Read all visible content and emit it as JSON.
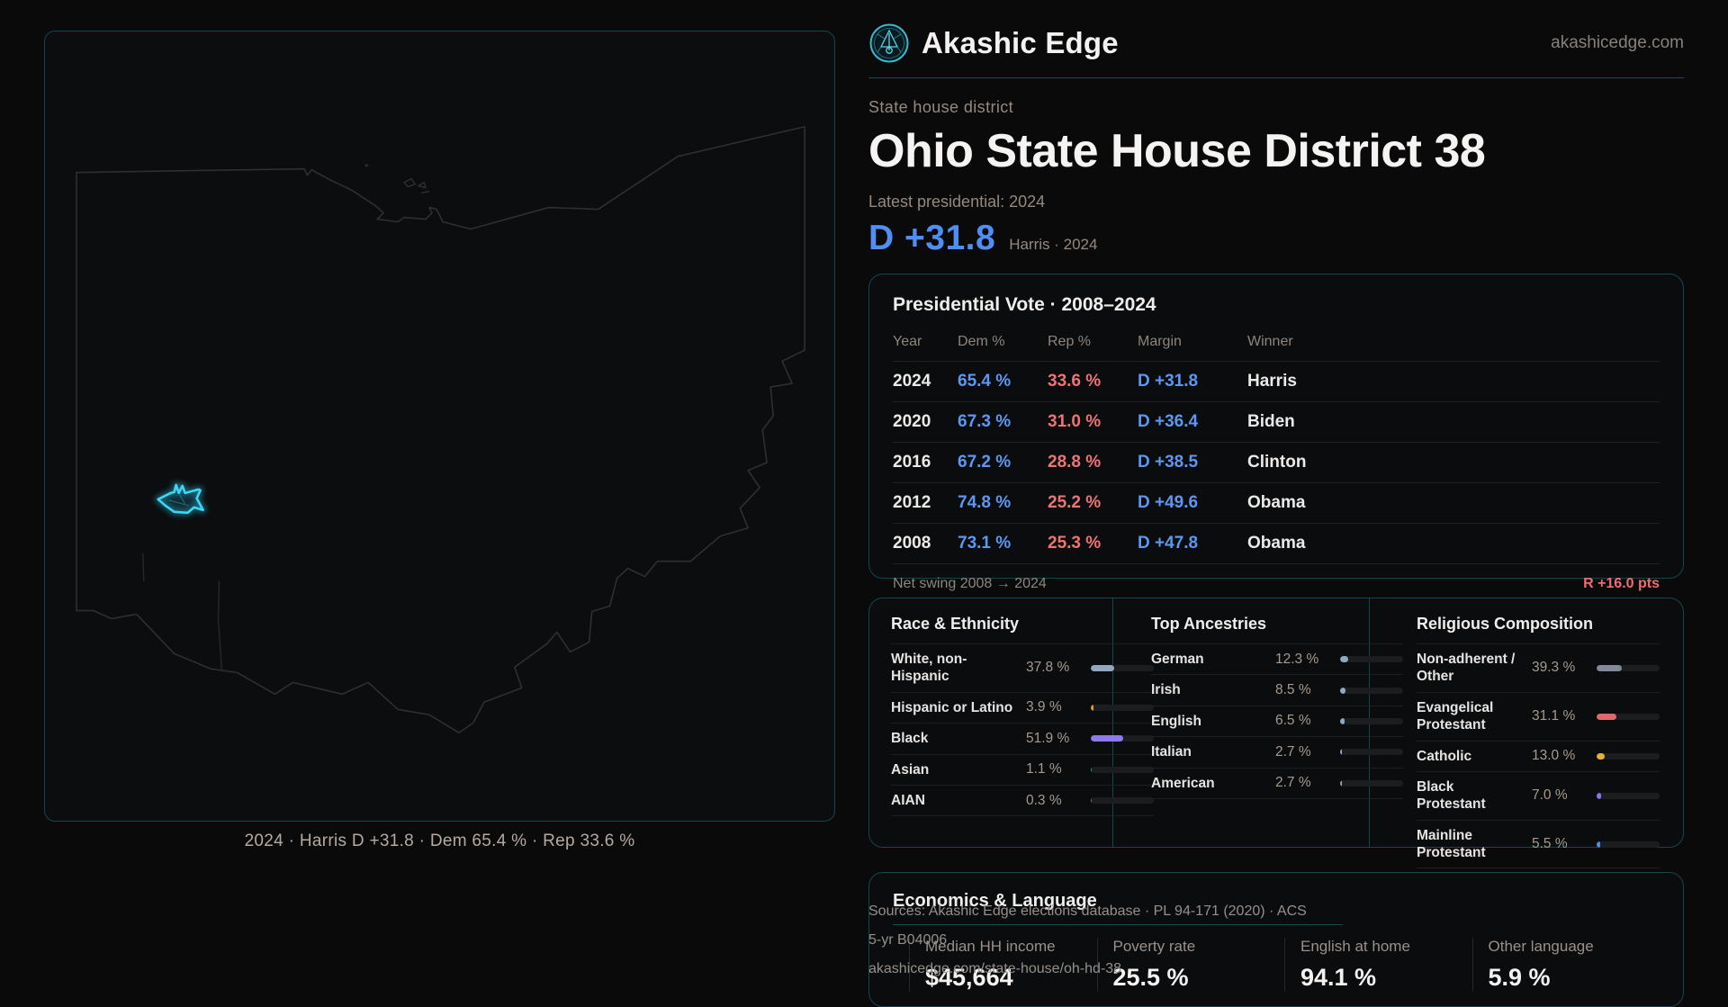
{
  "brand": {
    "name": "Akashic Edge",
    "domain": "akashicedge.com",
    "accent_teal": "#2fc3d8"
  },
  "page": {
    "kicker": "State house district",
    "title": "Ohio State House District 38",
    "latest_label": "Latest presidential: 2024",
    "margin_value": "D +31.8",
    "margin_context": "Harris · 2024"
  },
  "map": {
    "caption": "2024 · Harris D +31.8 · Dem 65.4 % · Rep 33.6 %",
    "district_color": "#3fd6f6",
    "outline_color": "#2e2f31"
  },
  "presidential": {
    "title": "Presidential Vote · 2008–2024",
    "columns": {
      "year": "Year",
      "dem": "Dem %",
      "rep": "Rep %",
      "margin": "Margin",
      "winner": "Winner"
    },
    "rows": [
      {
        "year": "2024",
        "dem": "65.4 %",
        "rep": "33.6 %",
        "margin": "D +31.8",
        "winner": "Harris"
      },
      {
        "year": "2020",
        "dem": "67.3 %",
        "rep": "31.0 %",
        "margin": "D +36.4",
        "winner": "Biden"
      },
      {
        "year": "2016",
        "dem": "67.2 %",
        "rep": "28.8 %",
        "margin": "D +38.5",
        "winner": "Clinton"
      },
      {
        "year": "2012",
        "dem": "74.8 %",
        "rep": "25.2 %",
        "margin": "D +49.6",
        "winner": "Obama"
      },
      {
        "year": "2008",
        "dem": "73.1 %",
        "rep": "25.3 %",
        "margin": "D +47.8",
        "winner": "Obama"
      }
    ],
    "net_swing_label": "Net swing 2008 → 2024",
    "net_swing_value": "R +16.0 pts"
  },
  "chart_data": [
    {
      "type": "bar",
      "title": "Race & Ethnicity",
      "categories": [
        "White, non-Hispanic",
        "Hispanic or Latino",
        "Black",
        "Asian",
        "AIAN"
      ],
      "values": [
        37.8,
        3.9,
        51.9,
        1.1,
        0.3
      ],
      "xlim": [
        0,
        100
      ],
      "unit": "%"
    },
    {
      "type": "bar",
      "title": "Top Ancestries",
      "categories": [
        "German",
        "Irish",
        "English",
        "Italian",
        "American"
      ],
      "values": [
        12.3,
        8.5,
        6.5,
        2.7,
        2.7
      ],
      "xlim": [
        0,
        100
      ],
      "unit": "%"
    },
    {
      "type": "bar",
      "title": "Religious Composition",
      "categories": [
        "Non-adherent / Other",
        "Evangelical Protestant",
        "Catholic",
        "Black Protestant",
        "Mainline Protestant"
      ],
      "values": [
        39.3,
        31.1,
        13.0,
        7.0,
        5.5
      ],
      "xlim": [
        0,
        100
      ],
      "unit": "%"
    }
  ],
  "panels": {
    "race": {
      "title": "Race & Ethnicity",
      "rows": [
        {
          "label": "White, non-Hispanic",
          "value": "37.8 %",
          "pct": 37.8,
          "color": "#93a7c0"
        },
        {
          "label": "Hispanic or Latino",
          "value": "3.9 %",
          "pct": 3.9,
          "color": "#e09a28"
        },
        {
          "label": "Black",
          "value": "51.9 %",
          "pct": 51.9,
          "color": "#8f7aec"
        },
        {
          "label": "Asian",
          "value": "1.1 %",
          "pct": 1.1,
          "color": "#2aa578"
        },
        {
          "label": "AIAN",
          "value": "0.3 %",
          "pct": 0.3,
          "color": "#c05f2a"
        }
      ]
    },
    "ancestries": {
      "title": "Top Ancestries",
      "rows": [
        {
          "label": "German",
          "value": "12.3 %",
          "pct": 12.3,
          "color": "#8fa8c4"
        },
        {
          "label": "Irish",
          "value": "8.5 %",
          "pct": 8.5,
          "color": "#8fa8c4"
        },
        {
          "label": "English",
          "value": "6.5 %",
          "pct": 6.5,
          "color": "#8fa8c4"
        },
        {
          "label": "Italian",
          "value": "2.7 %",
          "pct": 2.7,
          "color": "#8fa8c4"
        },
        {
          "label": "American",
          "value": "2.7 %",
          "pct": 2.7,
          "color": "#8fa8c4"
        }
      ]
    },
    "religion": {
      "title": "Religious Composition",
      "rows": [
        {
          "label": "Non-adherent / Other",
          "value": "39.3 %",
          "pct": 39.3,
          "color": "#828a99"
        },
        {
          "label": "Evangelical Protestant",
          "value": "31.1 %",
          "pct": 31.1,
          "color": "#dd6a6a"
        },
        {
          "label": "Catholic",
          "value": "13.0 %",
          "pct": 13.0,
          "color": "#e3b13c"
        },
        {
          "label": "Black Protestant",
          "value": "7.0 %",
          "pct": 7.0,
          "color": "#8575e8"
        },
        {
          "label": "Mainline Protestant",
          "value": "5.5 %",
          "pct": 5.5,
          "color": "#4a8fdf"
        }
      ]
    }
  },
  "economics": {
    "title": "Economics & Language",
    "stats": [
      {
        "label": "Median HH income",
        "value": "$45,664"
      },
      {
        "label": "Poverty rate",
        "value": "25.5 %"
      },
      {
        "label": "English at home",
        "value": "94.1 %"
      },
      {
        "label": "Other language",
        "value": "5.9 %"
      }
    ]
  },
  "sources": {
    "line1": "Sources: Akashic Edge elections database · PL 94-171 (2020) · ACS 5-yr B04006",
    "line2": "akashicedge.com/state-house/oh-hd-38"
  }
}
